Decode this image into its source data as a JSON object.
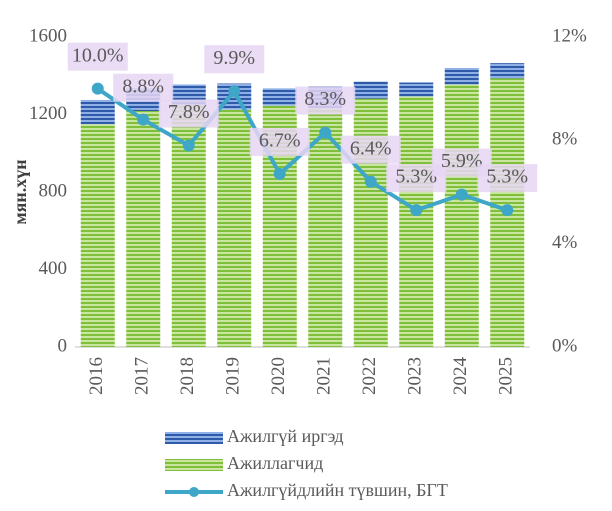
{
  "chart_data": {
    "type": "bar",
    "categories": [
      "2016",
      "2017",
      "2018",
      "2019",
      "2020",
      "2021",
      "2022",
      "2023",
      "2024",
      "2025"
    ],
    "ylabel": "мян.хүн",
    "series": [
      {
        "name": "Ажилгүй иргэд",
        "color": "#4472c4",
        "values": [
          125,
          117,
          106,
          135,
          89,
          112,
          88,
          72,
          85,
          78
        ]
      },
      {
        "name": "Ажиллагчид",
        "color": "#92d050",
        "values": [
          1150,
          1218,
          1249,
          1225,
          1246,
          1233,
          1282,
          1293,
          1355,
          1387
        ]
      },
      {
        "name": "Ажилгүйдлийн түвшин, БГТ",
        "color": "#3ea6c7",
        "type": "line",
        "axis": "y2",
        "values": [
          10.0,
          8.8,
          7.8,
          9.9,
          6.7,
          8.3,
          6.4,
          5.3,
          5.9,
          5.3
        ],
        "value_labels": [
          "10.0%",
          "8.8%",
          "7.8%",
          "9.9%",
          "6.7%",
          "8.3%",
          "6.4%",
          "5.3%",
          "5.9%",
          "5.3%"
        ]
      }
    ],
    "ylim": [
      0,
      1600
    ],
    "yticks": [
      0,
      400,
      800,
      1200,
      1600
    ],
    "y2lim": [
      0,
      12
    ],
    "y2ticks": [
      {
        "value": 0,
        "label": "0%"
      },
      {
        "value": 4,
        "label": "4%"
      },
      {
        "value": 8,
        "label": "8%"
      },
      {
        "value": 12,
        "label": "12%"
      }
    ],
    "legend": "bottom"
  }
}
